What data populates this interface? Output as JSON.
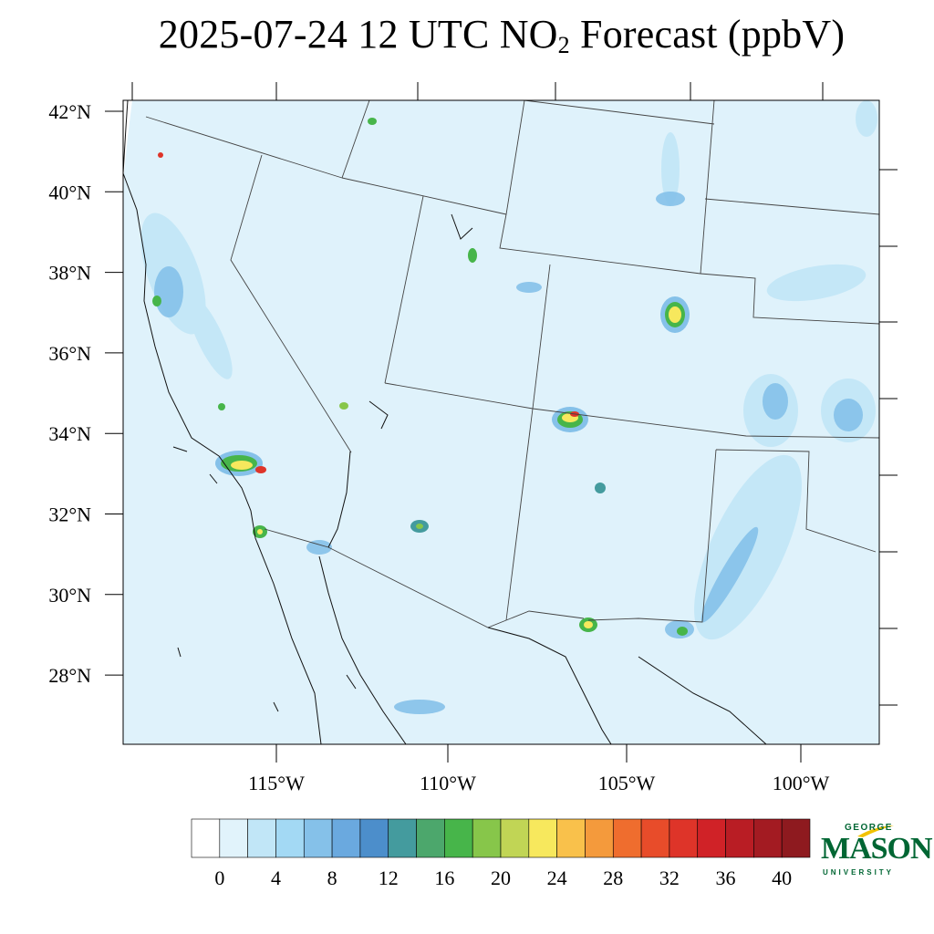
{
  "title": {
    "prefix": "2025-07-24 12 UTC NO",
    "subscript": "2",
    "suffix": " Forecast (ppbV)"
  },
  "axes": {
    "lat_labels": [
      "42°N",
      "40°N",
      "38°N",
      "36°N",
      "34°N",
      "32°N",
      "30°N",
      "28°N"
    ],
    "lon_labels": [
      "115°W",
      "110°W",
      "105°W",
      "100°W"
    ]
  },
  "colorbar": {
    "tick_labels": [
      "0",
      "4",
      "8",
      "12",
      "16",
      "20",
      "24",
      "28",
      "32",
      "36",
      "40"
    ],
    "colors": [
      "#ffffff",
      "#e1f3fb",
      "#c1e6f7",
      "#a3d9f4",
      "#85c1e9",
      "#6aa9df",
      "#4c8ecb",
      "#449b9e",
      "#4ca76c",
      "#47b54a",
      "#87c64a",
      "#c1d555",
      "#f7e85d",
      "#f9c14b",
      "#f49a3c",
      "#ef6d2e",
      "#e84c2a",
      "#de3429",
      "#d02227",
      "#b91d24",
      "#a31b22",
      "#8e1a1f"
    ]
  },
  "map_colors": {
    "background": "#dff2fb",
    "border": "#444444",
    "coast": "#111111"
  },
  "logo": {
    "top": "GEORGE",
    "main": "MASON",
    "bottom": "UNIVERSITY",
    "color": "#006633",
    "accent": "#f2c200"
  }
}
